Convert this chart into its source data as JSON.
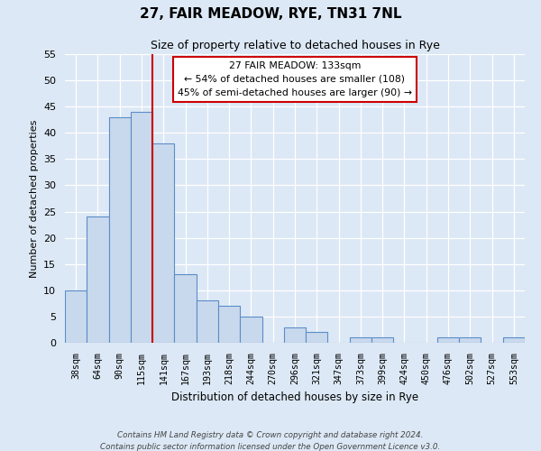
{
  "title": "27, FAIR MEADOW, RYE, TN31 7NL",
  "subtitle": "Size of property relative to detached houses in Rye",
  "xlabel": "Distribution of detached houses by size in Rye",
  "ylabel": "Number of detached properties",
  "bar_labels": [
    "38sqm",
    "64sqm",
    "90sqm",
    "115sqm",
    "141sqm",
    "167sqm",
    "193sqm",
    "218sqm",
    "244sqm",
    "270sqm",
    "296sqm",
    "321sqm",
    "347sqm",
    "373sqm",
    "399sqm",
    "424sqm",
    "450sqm",
    "476sqm",
    "502sqm",
    "527sqm",
    "553sqm"
  ],
  "bar_values": [
    10,
    24,
    43,
    44,
    38,
    13,
    8,
    7,
    5,
    0,
    3,
    2,
    0,
    1,
    1,
    0,
    0,
    1,
    1,
    0,
    1
  ],
  "bar_color": "#c9d9ed",
  "bar_edge_color": "#5b8dc8",
  "vline_index": 4,
  "vline_color": "#cc0000",
  "ylim": [
    0,
    55
  ],
  "yticks": [
    0,
    5,
    10,
    15,
    20,
    25,
    30,
    35,
    40,
    45,
    50,
    55
  ],
  "annotation_title": "27 FAIR MEADOW: 133sqm",
  "annotation_line1": "← 54% of detached houses are smaller (108)",
  "annotation_line2": "45% of semi-detached houses are larger (90) →",
  "annotation_box_color": "#cc0000",
  "background_color": "#dce8f5",
  "grid_color": "#ffffff",
  "footer1": "Contains HM Land Registry data © Crown copyright and database right 2024.",
  "footer2": "Contains public sector information licensed under the Open Government Licence v3.0."
}
